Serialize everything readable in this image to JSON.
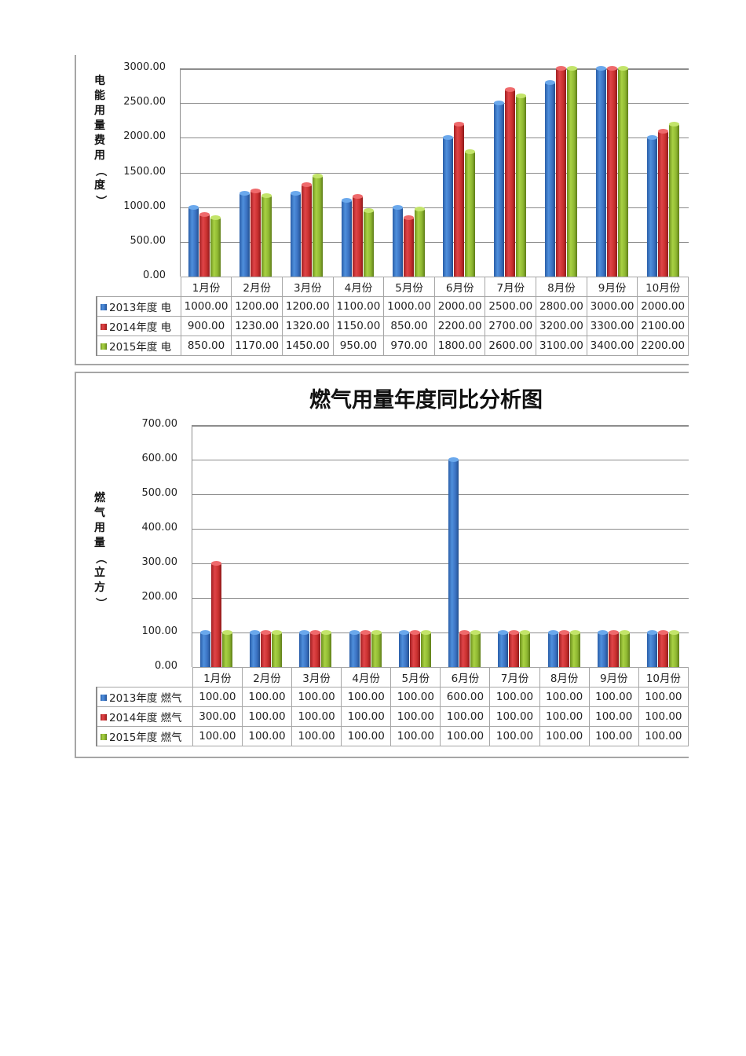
{
  "chart_data": [
    {
      "type": "bar",
      "title": "",
      "xlabel": "",
      "ylabel": "电能用量费用（度）",
      "ylim": [
        0,
        3000
      ],
      "yticks": [
        "0.00",
        "500.00",
        "1000.00",
        "1500.00",
        "2000.00",
        "2500.00",
        "3000.00"
      ],
      "grid": true,
      "legend_position": "data-table",
      "categories": [
        "1月份",
        "2月份",
        "3月份",
        "4月份",
        "5月份",
        "6月份",
        "7月份",
        "8月份",
        "9月份",
        "10月份"
      ],
      "series": [
        {
          "name": "2013年度 电",
          "color": "#3a72c2",
          "values": [
            1000,
            1200,
            1200,
            1100,
            1000,
            2000,
            2500,
            2800,
            3000,
            2000
          ],
          "labels": [
            "1000.00",
            "1200.00",
            "1200.00",
            "1100.00",
            "1000.00",
            "2000.00",
            "2500.00",
            "2800.00",
            "3000.00",
            "2000.00"
          ]
        },
        {
          "name": "2014年度 电",
          "color": "#c9302f",
          "values": [
            900,
            1230,
            1320,
            1150,
            850,
            2200,
            2700,
            3200,
            3300,
            2100
          ],
          "labels": [
            "900.00",
            "1230.00",
            "1320.00",
            "1150.00",
            "850.00",
            "2200.00",
            "2700.00",
            "3200.00",
            "3300.00",
            "2100.00"
          ]
        },
        {
          "name": "2015年度 电",
          "color": "#8fb832",
          "values": [
            850,
            1170,
            1450,
            950,
            970,
            1800,
            2600,
            3100,
            3400,
            2200
          ],
          "labels": [
            "850.00",
            "1170.00",
            "1450.00",
            "950.00",
            "970.00",
            "1800.00",
            "2600.00",
            "3100.00",
            "3400.00",
            "2200.00"
          ]
        }
      ]
    },
    {
      "type": "bar",
      "title": "燃气用量年度同比分析图",
      "xlabel": "",
      "ylabel": "燃气用量（立方）",
      "ylim": [
        0,
        700
      ],
      "yticks": [
        "0.00",
        "100.00",
        "200.00",
        "300.00",
        "400.00",
        "500.00",
        "600.00",
        "700.00"
      ],
      "grid": true,
      "legend_position": "data-table",
      "categories": [
        "1月份",
        "2月份",
        "3月份",
        "4月份",
        "5月份",
        "6月份",
        "7月份",
        "8月份",
        "9月份",
        "10月份"
      ],
      "series": [
        {
          "name": "2013年度 燃气",
          "color": "#3a72c2",
          "values": [
            100,
            100,
            100,
            100,
            100,
            600,
            100,
            100,
            100,
            100
          ],
          "labels": [
            "100.00",
            "100.00",
            "100.00",
            "100.00",
            "100.00",
            "600.00",
            "100.00",
            "100.00",
            "100.00",
            "100.00"
          ]
        },
        {
          "name": "2014年度 燃气",
          "color": "#c9302f",
          "values": [
            300,
            100,
            100,
            100,
            100,
            100,
            100,
            100,
            100,
            100
          ],
          "labels": [
            "300.00",
            "100.00",
            "100.00",
            "100.00",
            "100.00",
            "100.00",
            "100.00",
            "100.00",
            "100.00",
            "100.00"
          ]
        },
        {
          "name": "2015年度 燃气",
          "color": "#8fb832",
          "values": [
            100,
            100,
            100,
            100,
            100,
            100,
            100,
            100,
            100,
            100
          ],
          "labels": [
            "100.00",
            "100.00",
            "100.00",
            "100.00",
            "100.00",
            "100.00",
            "100.00",
            "100.00",
            "100.00",
            "100.00"
          ]
        }
      ]
    }
  ]
}
